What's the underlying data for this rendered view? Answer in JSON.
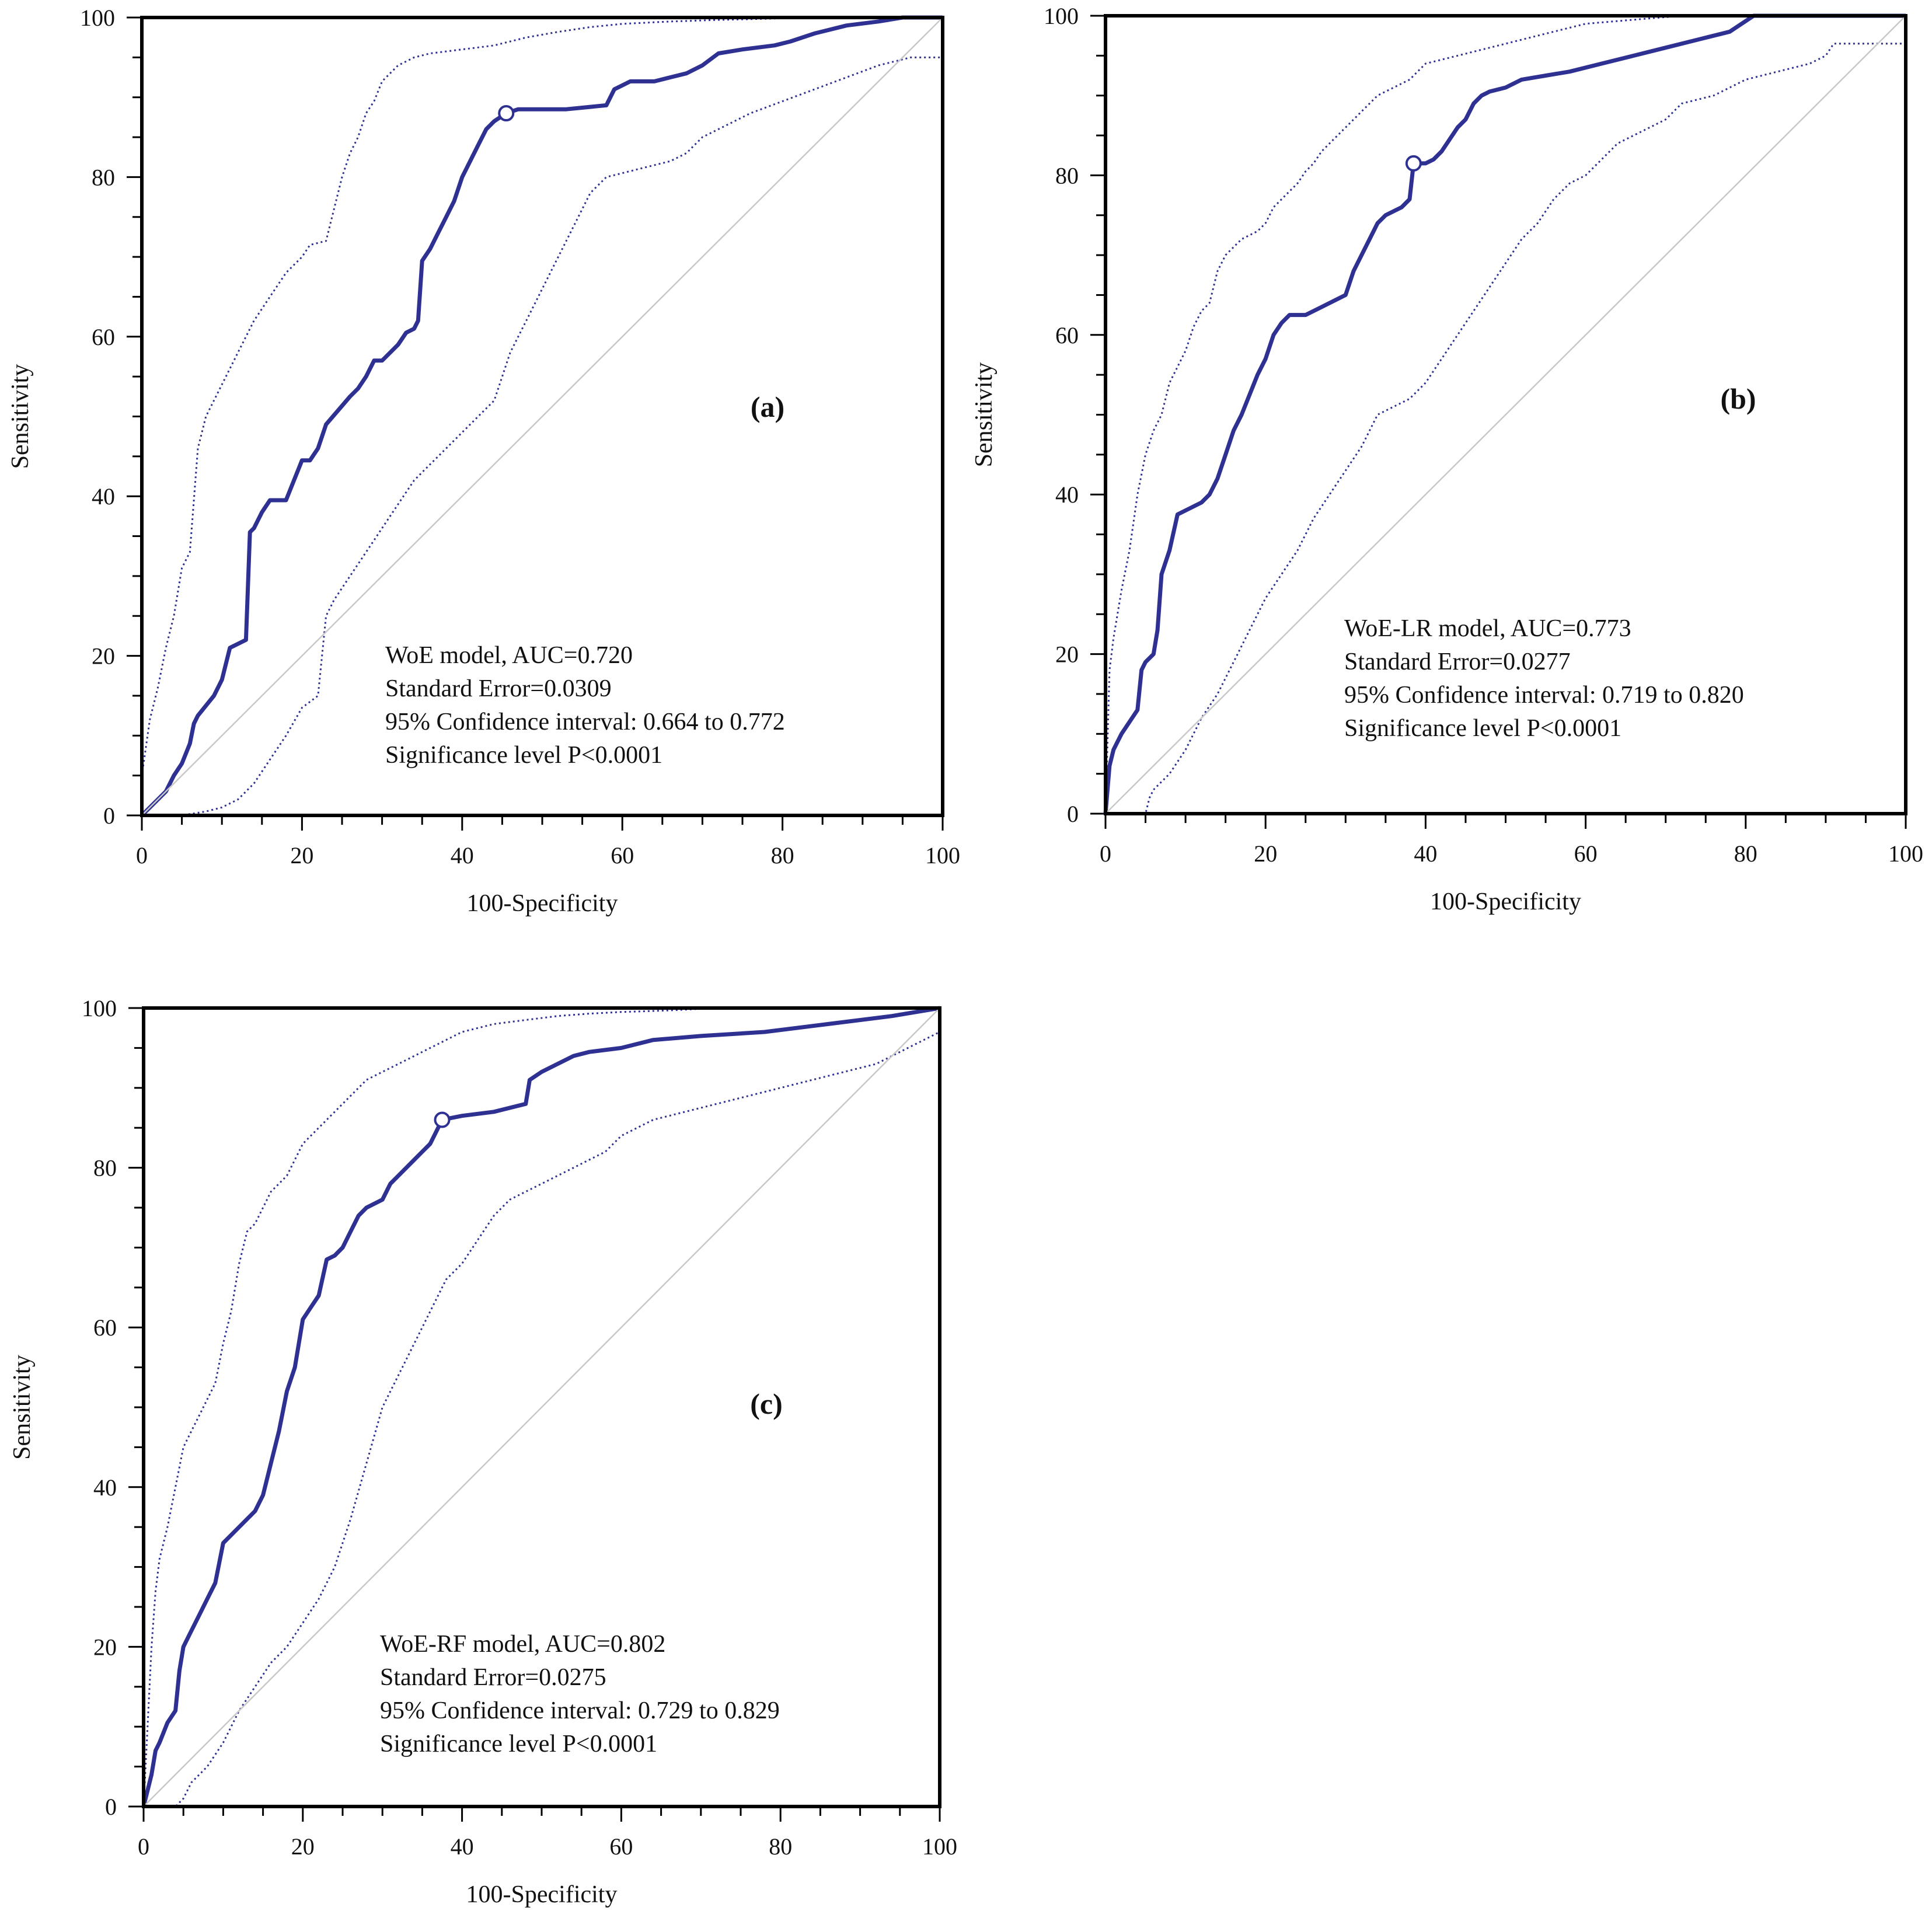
{
  "figure": {
    "colors": {
      "curve": "#2e3192",
      "diagonal": "#c8c8c8",
      "frame": "#000000"
    },
    "panels": [
      {
        "label": "(a)",
        "stats": [
          "WoE model, AUC=0.720",
          "Standard Error=0.0309",
          "95% Confidence interval: 0.664 to 0.772",
          "Significance level P<0.0001"
        ]
      },
      {
        "label": "(b)",
        "stats": [
          "WoE-LR model, AUC=0.773",
          "Standard Error=0.0277",
          "95% Confidence interval: 0.719 to 0.820",
          "Significance level P<0.0001"
        ]
      },
      {
        "label": "(c)",
        "stats": [
          "WoE-RF model, AUC=0.802",
          "Standard Error=0.0275",
          "95% Confidence interval: 0.729 to 0.829",
          "Significance level P<0.0001"
        ]
      }
    ]
  },
  "chart_data": [
    {
      "type": "line",
      "panel": "(a)",
      "title": "WoE model, AUC=0.720",
      "xlabel": "100-Specificity",
      "ylabel": "Sensitivity",
      "xlim": [
        0,
        100
      ],
      "ylim": [
        0,
        100
      ],
      "xticks": [
        0,
        20,
        40,
        60,
        80,
        100
      ],
      "yticks": [
        0,
        20,
        40,
        60,
        80,
        100
      ],
      "cutoff_point": [
        45.5,
        88
      ],
      "series": [
        {
          "name": "ROC curve",
          "style": "solid",
          "x": [
            0,
            1.5,
            3,
            4,
            5,
            6,
            6.5,
            7,
            9,
            10,
            11,
            13,
            13.5,
            14,
            15,
            16,
            18,
            20,
            21,
            22,
            23,
            26,
            27,
            28,
            29,
            30,
            32,
            33,
            34,
            34.5,
            35,
            36,
            37,
            38,
            39,
            40,
            42,
            43,
            44,
            45.5,
            47,
            53,
            58,
            59,
            60,
            61,
            64,
            66,
            68,
            70,
            72,
            75,
            79,
            81,
            84,
            88,
            92,
            95,
            100
          ],
          "y": [
            0,
            1.5,
            3,
            5,
            6.5,
            9,
            11.5,
            12.5,
            15,
            17,
            21,
            22,
            35.5,
            36,
            38,
            39.5,
            39.5,
            44.5,
            44.5,
            46,
            49,
            52.5,
            53.5,
            55,
            57,
            57,
            59,
            60.5,
            61,
            62,
            69.5,
            71,
            73,
            75,
            77,
            80,
            84,
            86,
            87,
            88,
            88.5,
            88.5,
            89,
            91,
            91.5,
            92,
            92,
            92.5,
            93,
            94,
            95.5,
            96,
            96.5,
            97,
            98,
            99,
            99.5,
            100,
            100
          ]
        },
        {
          "name": "95% CI upper",
          "style": "dotted",
          "x": [
            0,
            1,
            2,
            3,
            4,
            5,
            6,
            7,
            8,
            9,
            10,
            11,
            12,
            14,
            15,
            16,
            18,
            20,
            21,
            23,
            24,
            25,
            26,
            27,
            28,
            29,
            30,
            32,
            33,
            34,
            36,
            40,
            44,
            48,
            52,
            56,
            60,
            66,
            72,
            80,
            90,
            100
          ],
          "y": [
            5,
            12,
            16,
            21,
            25,
            31,
            33,
            46,
            50,
            52,
            54,
            56,
            58,
            62,
            63.5,
            65,
            68,
            70,
            71.5,
            72,
            76,
            80,
            83,
            85,
            88,
            89.5,
            92,
            94,
            94.5,
            95,
            95.5,
            96,
            96.5,
            97.5,
            98.2,
            98.8,
            99.2,
            99.5,
            99.7,
            99.9,
            100,
            100
          ]
        },
        {
          "name": "95% CI lower",
          "style": "dotted",
          "x": [
            0,
            5,
            8,
            10,
            12,
            14,
            16,
            18,
            20,
            22,
            23,
            24,
            26,
            28,
            30,
            32,
            34,
            36,
            38,
            40,
            42,
            44,
            46,
            47,
            48,
            50,
            52,
            54,
            56,
            58,
            60,
            62,
            64,
            66,
            68,
            70,
            72,
            76,
            80,
            84,
            88,
            92,
            96,
            100
          ],
          "y": [
            0,
            0,
            0.5,
            1,
            2,
            4,
            7,
            10,
            13.5,
            15,
            25,
            27,
            30,
            33,
            36,
            39,
            42,
            44,
            46,
            48,
            50,
            52,
            58,
            60,
            62,
            66,
            70,
            74,
            78,
            80,
            80.5,
            81,
            81.5,
            82,
            83,
            85,
            86,
            88,
            89.5,
            91,
            92.5,
            94,
            95,
            95
          ]
        },
        {
          "name": "reference diagonal",
          "style": "thin",
          "x": [
            0,
            100
          ],
          "y": [
            0,
            100
          ]
        }
      ]
    },
    {
      "type": "line",
      "panel": "(b)",
      "title": "WoE-LR model, AUC=0.773",
      "xlabel": "100-Specificity",
      "ylabel": "Sensitivity",
      "xlim": [
        0,
        100
      ],
      "ylim": [
        0,
        100
      ],
      "xticks": [
        0,
        20,
        40,
        60,
        80,
        100
      ],
      "yticks": [
        0,
        20,
        40,
        60,
        80,
        100
      ],
      "cutoff_point": [
        38.5,
        81.5
      ],
      "series": [
        {
          "name": "ROC curve",
          "style": "solid",
          "x": [
            0,
            0.5,
            1,
            2,
            3,
            4,
            4.5,
            5,
            6,
            6.5,
            7,
            8,
            9,
            12,
            13,
            14,
            15,
            16,
            17,
            18,
            19,
            20,
            21,
            22,
            23,
            25,
            27,
            28,
            30,
            31,
            32,
            33,
            34,
            35,
            37,
            38,
            38.5,
            40,
            41,
            42,
            43,
            44,
            45,
            46,
            47,
            48,
            50,
            52,
            55,
            58,
            62,
            66,
            70,
            74,
            78,
            81,
            100
          ],
          "y": [
            0,
            6,
            8,
            10,
            11.5,
            13,
            18,
            19,
            20,
            23,
            30,
            33,
            37.5,
            39,
            40,
            42,
            45,
            48,
            50,
            52.5,
            55,
            57,
            60,
            61.5,
            62.5,
            62.5,
            63.5,
            64,
            65,
            68,
            70,
            72,
            74,
            75,
            76,
            77,
            81.5,
            81.5,
            82,
            83,
            84.5,
            86,
            87,
            89,
            90,
            90.5,
            91,
            92,
            92.5,
            93,
            94,
            95,
            96,
            97,
            98,
            100,
            100
          ]
        },
        {
          "name": "95% CI upper",
          "style": "dotted",
          "x": [
            0,
            0.5,
            1,
            2,
            3,
            4,
            5,
            6,
            7,
            8,
            9,
            10,
            11,
            12,
            13,
            14,
            15,
            16,
            17,
            18,
            19,
            20,
            21,
            22,
            23,
            24,
            25,
            26,
            27,
            28,
            29,
            30,
            32,
            34,
            36,
            38,
            40,
            44,
            48,
            52,
            56,
            60,
            66,
            72,
            80,
            100
          ],
          "y": [
            0,
            18,
            22,
            28,
            33,
            40,
            45,
            48,
            50,
            54,
            56,
            58,
            61,
            63,
            64,
            68,
            70,
            71,
            72,
            72.5,
            73,
            74,
            76,
            77,
            78,
            79,
            80.5,
            81.5,
            83,
            84,
            85,
            86,
            88,
            90,
            91,
            92,
            94,
            95,
            96,
            97,
            98,
            99,
            99.5,
            100,
            100,
            100
          ]
        },
        {
          "name": "95% CI lower",
          "style": "dotted",
          "x": [
            0,
            5,
            5.5,
            6,
            7,
            8,
            10,
            12,
            14,
            16,
            18,
            20,
            22,
            24,
            26,
            28,
            30,
            32,
            34,
            36,
            38,
            40,
            42,
            44,
            46,
            48,
            50,
            52,
            54,
            56,
            58,
            60,
            62,
            64,
            66,
            68,
            70,
            72,
            76,
            80,
            84,
            88,
            90,
            91,
            92,
            100
          ],
          "y": [
            0,
            0,
            2,
            3,
            4,
            5,
            8,
            12,
            15,
            19,
            23,
            27,
            30,
            33,
            37,
            40,
            43,
            46,
            50,
            51,
            52,
            54,
            57,
            60,
            63,
            66,
            69,
            72,
            74,
            77,
            79,
            80,
            82,
            84,
            85,
            86,
            87,
            89,
            90,
            92,
            93,
            94,
            95,
            96.5,
            96.5,
            96.5
          ]
        },
        {
          "name": "reference diagonal",
          "style": "thin",
          "x": [
            0,
            100
          ],
          "y": [
            0,
            100
          ]
        }
      ]
    },
    {
      "type": "line",
      "panel": "(c)",
      "title": "WoE-RF model, AUC=0.802",
      "xlabel": "100-Specificity",
      "ylabel": "Sensitivity",
      "xlim": [
        0,
        100
      ],
      "ylim": [
        0,
        100
      ],
      "xticks": [
        0,
        20,
        40,
        60,
        80,
        100
      ],
      "yticks": [
        0,
        20,
        40,
        60,
        80,
        100
      ],
      "cutoff_point": [
        37.5,
        86
      ],
      "series": [
        {
          "name": "ROC curve",
          "style": "solid",
          "x": [
            0,
            0.5,
            1,
            1.5,
            2,
            3,
            4,
            4.5,
            5,
            6,
            7,
            8,
            9,
            10,
            12,
            14,
            15,
            16,
            17,
            18,
            19,
            20,
            21,
            22,
            23,
            24,
            25,
            26,
            27,
            28,
            30,
            31,
            32,
            34,
            35,
            36,
            37.5,
            40,
            44,
            48,
            48.5,
            50,
            52,
            54,
            56,
            60,
            64,
            70,
            78,
            86,
            94,
            100
          ],
          "y": [
            0,
            2,
            4,
            7,
            8,
            10.5,
            12,
            17,
            20,
            22,
            24,
            26,
            28,
            33,
            35,
            37,
            39,
            43,
            47,
            52,
            55,
            61,
            62.5,
            64,
            68.5,
            69,
            70,
            72,
            74,
            75,
            76,
            78,
            79,
            81,
            82,
            83,
            86,
            86.5,
            87,
            88,
            91,
            92,
            93,
            94,
            94.5,
            95,
            96,
            96.5,
            97,
            98,
            99,
            100
          ]
        },
        {
          "name": "95% CI upper",
          "style": "dotted",
          "x": [
            0,
            0.5,
            1,
            1.5,
            2,
            3,
            4,
            5,
            6,
            7,
            8,
            9,
            10,
            11,
            12,
            13,
            14,
            15,
            16,
            17,
            18,
            19,
            20,
            22,
            24,
            26,
            28,
            30,
            32,
            34,
            36,
            38,
            40,
            44,
            48,
            52,
            56,
            60,
            66,
            72,
            80,
            100
          ],
          "y": [
            0,
            10,
            20,
            27,
            31,
            35,
            40,
            45,
            47,
            49,
            51,
            53,
            58,
            62,
            68,
            72,
            73,
            75,
            77,
            78,
            79,
            81,
            83,
            85,
            87,
            89,
            91,
            92,
            93,
            94,
            95,
            96,
            97,
            98,
            98.5,
            99,
            99.3,
            99.5,
            99.7,
            100,
            100,
            100
          ]
        },
        {
          "name": "95% CI lower",
          "style": "dotted",
          "x": [
            0,
            4,
            5,
            6,
            8,
            10,
            12,
            14,
            16,
            18,
            20,
            22,
            24,
            26,
            28,
            30,
            32,
            34,
            36,
            38,
            40,
            42,
            44,
            46,
            48,
            50,
            52,
            54,
            56,
            58,
            60,
            62,
            64,
            66,
            68,
            72,
            76,
            80,
            84,
            88,
            92,
            96,
            100
          ],
          "y": [
            0,
            0,
            1,
            3,
            5,
            8,
            12,
            15,
            18,
            20,
            23,
            26,
            30,
            36,
            43,
            50,
            54,
            58,
            62,
            66,
            68,
            71,
            74,
            76,
            77,
            78,
            79,
            80,
            81,
            82,
            84,
            85,
            86,
            86.5,
            87,
            88,
            89,
            90,
            91,
            92,
            93,
            95,
            97
          ]
        },
        {
          "name": "reference diagonal",
          "style": "thin",
          "x": [
            0,
            100
          ],
          "y": [
            0,
            100
          ]
        }
      ]
    }
  ]
}
